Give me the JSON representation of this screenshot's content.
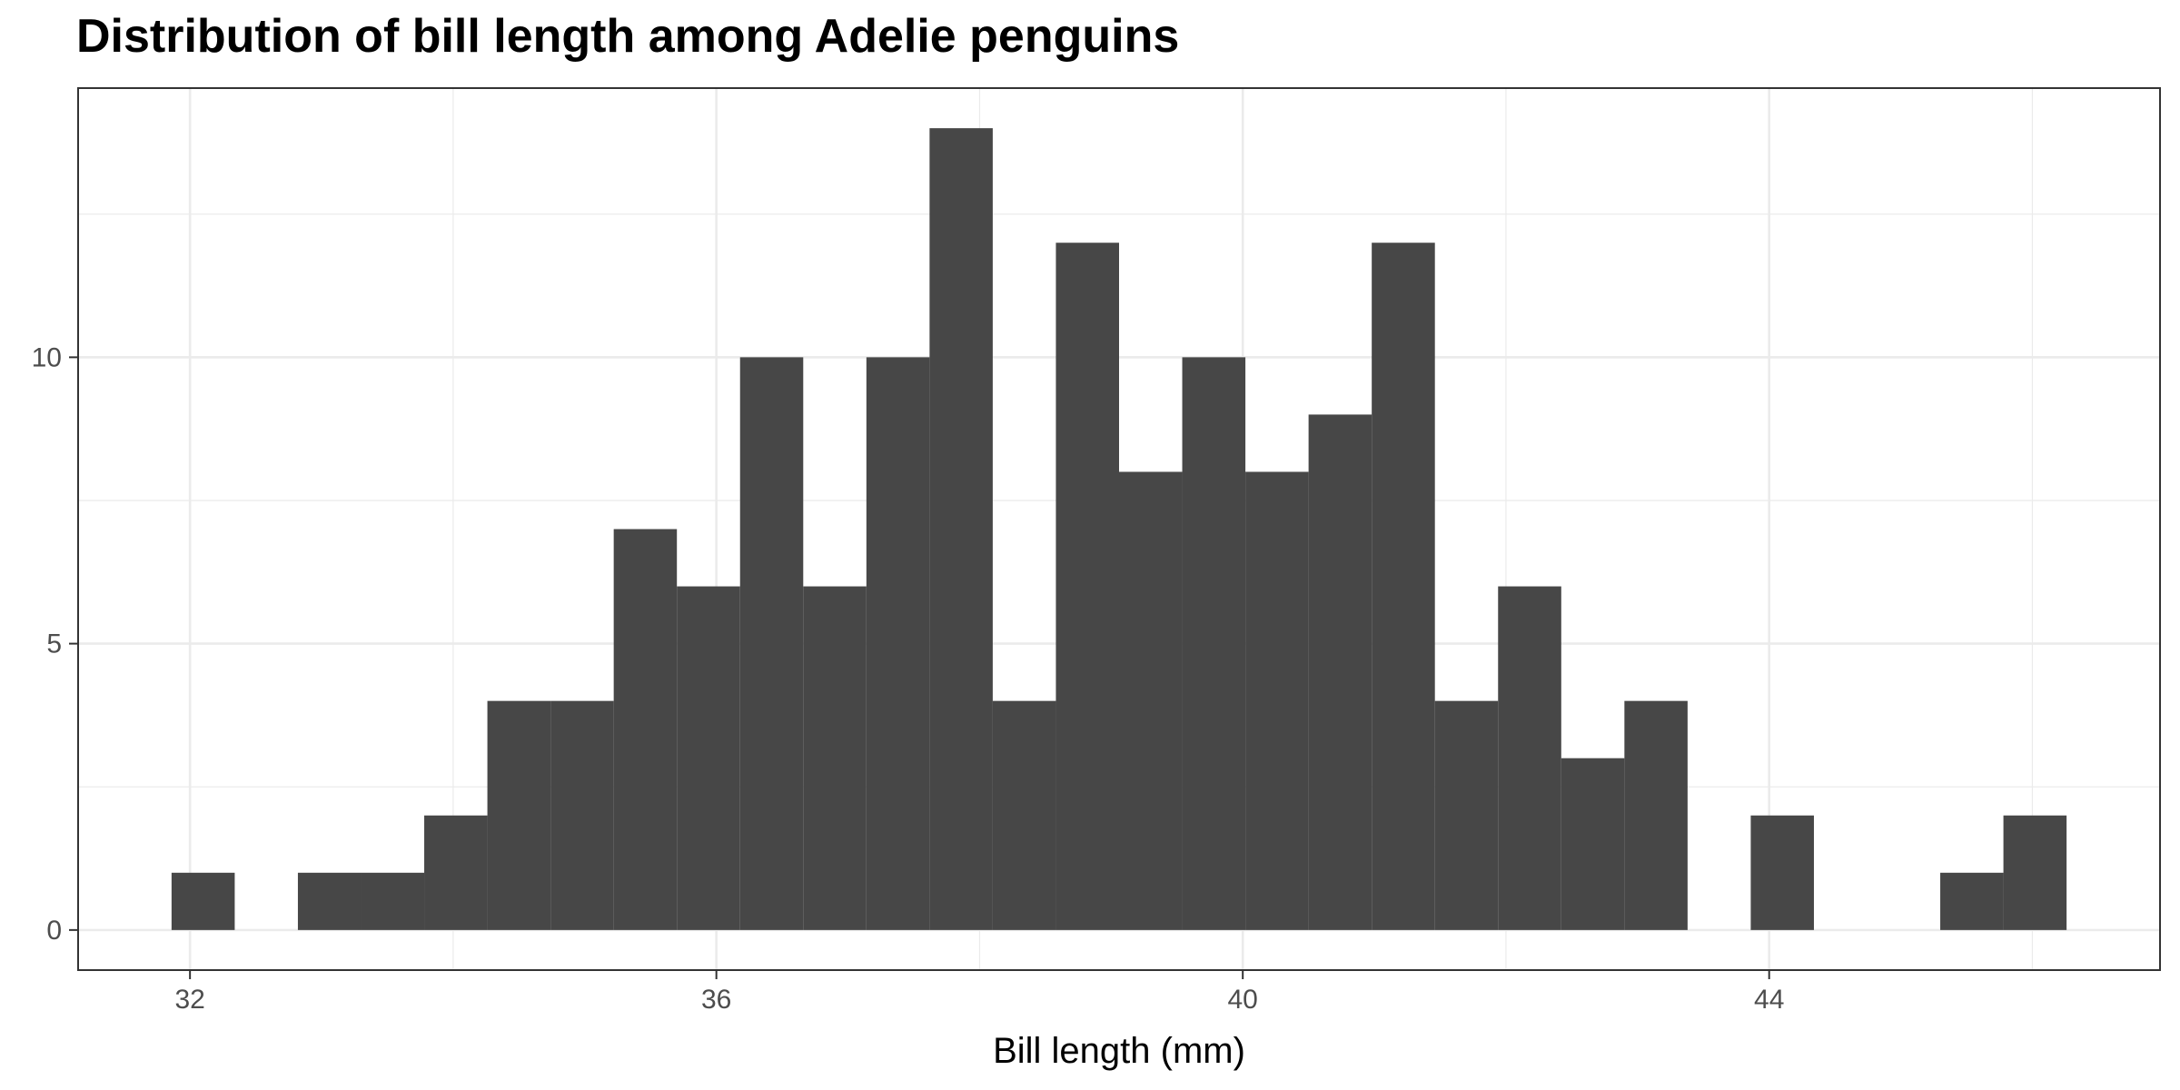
{
  "chart_data": {
    "type": "bar",
    "title": "Distribution of bill length among Adelie penguins",
    "xlabel": "Bill length (mm)",
    "ylabel": "",
    "bin_width": 0.48,
    "bins": [
      {
        "x": 32.1,
        "count": 1
      },
      {
        "x": 32.58,
        "count": 0
      },
      {
        "x": 33.06,
        "count": 1
      },
      {
        "x": 33.54,
        "count": 1
      },
      {
        "x": 34.02,
        "count": 2
      },
      {
        "x": 34.5,
        "count": 4
      },
      {
        "x": 34.98,
        "count": 4
      },
      {
        "x": 35.46,
        "count": 7
      },
      {
        "x": 35.94,
        "count": 6
      },
      {
        "x": 36.42,
        "count": 10
      },
      {
        "x": 36.9,
        "count": 6
      },
      {
        "x": 37.38,
        "count": 10
      },
      {
        "x": 37.86,
        "count": 14
      },
      {
        "x": 38.34,
        "count": 4
      },
      {
        "x": 38.82,
        "count": 12
      },
      {
        "x": 39.3,
        "count": 8
      },
      {
        "x": 39.78,
        "count": 10
      },
      {
        "x": 40.26,
        "count": 8
      },
      {
        "x": 40.74,
        "count": 9
      },
      {
        "x": 41.22,
        "count": 12
      },
      {
        "x": 41.7,
        "count": 4
      },
      {
        "x": 42.18,
        "count": 6
      },
      {
        "x": 42.66,
        "count": 3
      },
      {
        "x": 43.14,
        "count": 4
      },
      {
        "x": 43.62,
        "count": 0
      },
      {
        "x": 44.1,
        "count": 2
      },
      {
        "x": 44.58,
        "count": 0
      },
      {
        "x": 45.06,
        "count": 0
      },
      {
        "x": 45.54,
        "count": 1
      },
      {
        "x": 46.02,
        "count": 2
      }
    ],
    "x_ticks": [
      32,
      36,
      40,
      44
    ],
    "y_ticks": [
      0,
      5,
      10
    ],
    "xlim": [
      31.15,
      46.97
    ],
    "ylim": [
      -0.7,
      14.7
    ],
    "grid": true,
    "bar_color": "#474747",
    "grid_color": "#ebebeb",
    "panel_border_color": "#333333"
  }
}
